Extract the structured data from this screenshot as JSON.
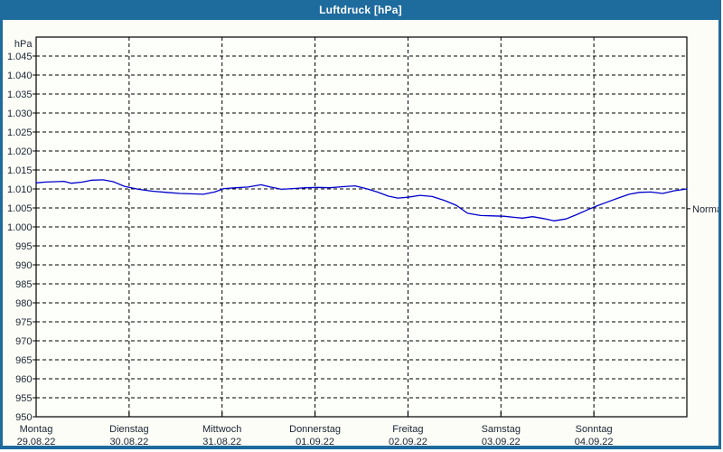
{
  "window": {
    "title": "Luftdruck [hPa]"
  },
  "colors": {
    "frame": "#1e6b9e",
    "titlebar_text": "#ffffff",
    "background": "#fbfdf6",
    "plot_bg": "#fdfffa",
    "grid": "#000000",
    "axis": "#000000",
    "line": "#0000cc",
    "label_text": "#1c2434"
  },
  "chart_data": {
    "type": "line",
    "title": "Luftdruck [hPa]",
    "ylabel": "hPa",
    "unit_label": "hPa",
    "ylim": [
      950,
      1050
    ],
    "ytick_values": [
      1045,
      1040,
      1035,
      1030,
      1025,
      1020,
      1015,
      1010,
      1005,
      1000,
      995,
      990,
      985,
      980,
      975,
      970,
      965,
      960,
      955,
      950
    ],
    "ytick_labels": [
      "1.045",
      "1.040",
      "1.035",
      "1.030",
      "1.025",
      "1.020",
      "1.015",
      "1.010",
      "1.005",
      "1.000",
      "995",
      "990",
      "985",
      "980",
      "975",
      "970",
      "965",
      "960",
      "955",
      "950"
    ],
    "grid": "dashed horizontal and vertical, black on white",
    "legend_position": "none",
    "x_days": [
      {
        "name": "Montag",
        "date": "29.08.22"
      },
      {
        "name": "Dienstag",
        "date": "30.08.22"
      },
      {
        "name": "Mittwoch",
        "date": "31.08.22"
      },
      {
        "name": "Donnerstag",
        "date": "01.09.22"
      },
      {
        "name": "Freitag",
        "date": "02.09.22"
      },
      {
        "name": "Samstag",
        "date": "03.09.22"
      },
      {
        "name": "Sonntag",
        "date": "04.09.22"
      }
    ],
    "normal_marker": {
      "label": "Normal",
      "value": 1004.8
    },
    "series": [
      {
        "name": "Luftdruck",
        "points": [
          [
            0.0,
            1011.6
          ],
          [
            0.1,
            1011.8
          ],
          [
            0.2,
            1011.9
          ],
          [
            0.3,
            1012.0
          ],
          [
            0.38,
            1011.5
          ],
          [
            0.5,
            1011.8
          ],
          [
            0.6,
            1012.3
          ],
          [
            0.72,
            1012.4
          ],
          [
            0.83,
            1011.9
          ],
          [
            0.95,
            1010.7
          ],
          [
            1.0,
            1010.4
          ],
          [
            1.1,
            1009.9
          ],
          [
            1.25,
            1009.4
          ],
          [
            1.4,
            1009.1
          ],
          [
            1.55,
            1008.8
          ],
          [
            1.7,
            1008.7
          ],
          [
            1.8,
            1008.6
          ],
          [
            1.92,
            1009.2
          ],
          [
            2.02,
            1010.1
          ],
          [
            2.15,
            1010.3
          ],
          [
            2.28,
            1010.5
          ],
          [
            2.42,
            1011.1
          ],
          [
            2.52,
            1010.5
          ],
          [
            2.64,
            1009.9
          ],
          [
            2.76,
            1010.1
          ],
          [
            2.9,
            1010.3
          ],
          [
            3.03,
            1010.4
          ],
          [
            3.16,
            1010.3
          ],
          [
            3.3,
            1010.6
          ],
          [
            3.43,
            1010.8
          ],
          [
            3.55,
            1010.1
          ],
          [
            3.67,
            1009.2
          ],
          [
            3.79,
            1008.1
          ],
          [
            3.89,
            1007.6
          ],
          [
            4.0,
            1007.8
          ],
          [
            4.13,
            1008.3
          ],
          [
            4.26,
            1008.0
          ],
          [
            4.39,
            1007.0
          ],
          [
            4.52,
            1005.7
          ],
          [
            4.64,
            1003.6
          ],
          [
            4.78,
            1003.0
          ],
          [
            4.91,
            1002.9
          ],
          [
            5.03,
            1002.8
          ],
          [
            5.15,
            1002.5
          ],
          [
            5.23,
            1002.3
          ],
          [
            5.34,
            1002.7
          ],
          [
            5.46,
            1002.2
          ],
          [
            5.57,
            1001.6
          ],
          [
            5.7,
            1002.1
          ],
          [
            5.81,
            1003.2
          ],
          [
            5.94,
            1004.6
          ],
          [
            6.03,
            1005.5
          ],
          [
            6.14,
            1006.5
          ],
          [
            6.26,
            1007.6
          ],
          [
            6.38,
            1008.6
          ],
          [
            6.49,
            1009.1
          ],
          [
            6.61,
            1009.2
          ],
          [
            6.74,
            1008.8
          ],
          [
            6.86,
            1009.5
          ],
          [
            7.0,
            1010.0
          ]
        ]
      }
    ]
  }
}
